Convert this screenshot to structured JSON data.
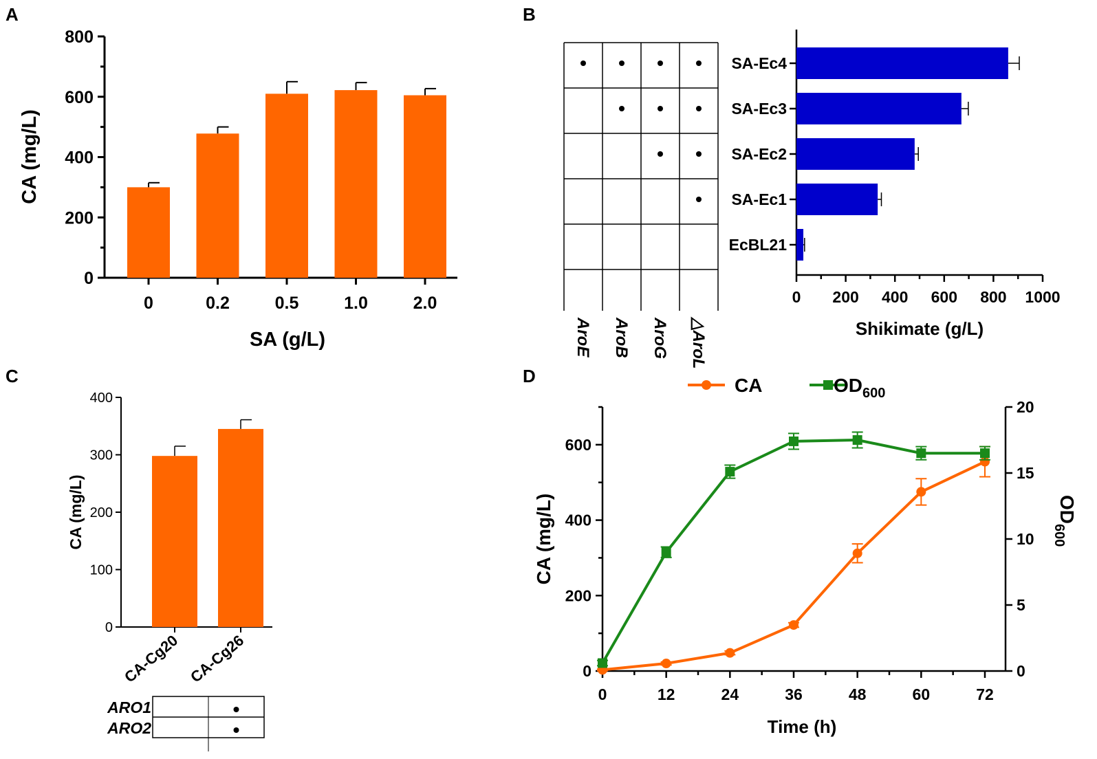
{
  "chart_data": [
    {
      "panel": "A",
      "type": "bar",
      "title": "",
      "xlabel": "SA (g/L)",
      "ylabel": "CA (mg/L)",
      "categories": [
        "0",
        "0.2",
        "0.5",
        "1.0",
        "2.0"
      ],
      "values": [
        300,
        478,
        610,
        622,
        605
      ],
      "errors": [
        15,
        22,
        40,
        25,
        22
      ],
      "ylim": [
        0,
        800
      ],
      "yticks": [
        "0",
        "200",
        "400",
        "600",
        "800"
      ],
      "color": "#ff6600"
    },
    {
      "panel": "B",
      "type": "bar",
      "orientation": "horizontal",
      "xlabel": "Shikimate (g/L)",
      "categories": [
        "SA-Ec4",
        "SA-Ec3",
        "SA-Ec2",
        "SA-Ec1",
        "EcBL21"
      ],
      "values": [
        860,
        670,
        480,
        330,
        28
      ],
      "errors": [
        45,
        28,
        15,
        15,
        5
      ],
      "xlim": [
        0,
        1000
      ],
      "xticks": [
        "0",
        "200",
        "400",
        "600",
        "800",
        "1000"
      ],
      "color": "#0000cc",
      "matrix_columns": [
        "AroE",
        "AroB",
        "AroG",
        "△AroL"
      ],
      "matrix": [
        [
          1,
          1,
          1,
          1
        ],
        [
          0,
          1,
          1,
          1
        ],
        [
          0,
          0,
          1,
          1
        ],
        [
          0,
          0,
          0,
          1
        ],
        [
          0,
          0,
          0,
          0
        ]
      ]
    },
    {
      "panel": "C",
      "type": "bar",
      "ylabel": "CA (mg/L)",
      "categories": [
        "CA-Cg20",
        "CA-Cg26"
      ],
      "values": [
        298,
        345
      ],
      "errors": [
        17,
        16
      ],
      "ylim": [
        0,
        400
      ],
      "yticks": [
        "0",
        "100",
        "200",
        "300",
        "400"
      ],
      "color": "#ff6600",
      "matrix_rows": [
        "ARO1",
        "ARO2"
      ],
      "matrix": [
        [
          0,
          1
        ],
        [
          0,
          1
        ]
      ]
    },
    {
      "panel": "D",
      "type": "line",
      "xlabel": "Time (h)",
      "ylabel": "CA (mg/L)",
      "y2label_main": "OD",
      "y2label_sub": "600",
      "x": [
        0,
        12,
        24,
        36,
        48,
        60,
        72
      ],
      "xticks": [
        "0",
        "12",
        "24",
        "36",
        "48",
        "60",
        "72"
      ],
      "ylim": [
        0,
        700
      ],
      "yticks": [
        "0",
        "200",
        "400",
        "600"
      ],
      "y2lim": [
        0,
        20
      ],
      "y2ticks": [
        "0",
        "5",
        "10",
        "15",
        "20"
      ],
      "series": [
        {
          "name": "CA",
          "axis": "left",
          "color": "#ff6600",
          "marker": "circle",
          "values": [
            3,
            20,
            48,
            122,
            312,
            475,
            555
          ],
          "errors": [
            2,
            4,
            5,
            6,
            25,
            35,
            40
          ]
        },
        {
          "name": "OD",
          "name_sub": "600",
          "axis": "right",
          "color": "#1a8a1a",
          "marker": "square",
          "values": [
            0.6,
            9.0,
            15.1,
            17.4,
            17.5,
            16.5,
            16.5
          ],
          "errors": [
            0.2,
            0.4,
            0.5,
            0.6,
            0.6,
            0.5,
            0.5
          ]
        }
      ]
    }
  ],
  "panels": [
    "A",
    "B",
    "C",
    "D"
  ]
}
